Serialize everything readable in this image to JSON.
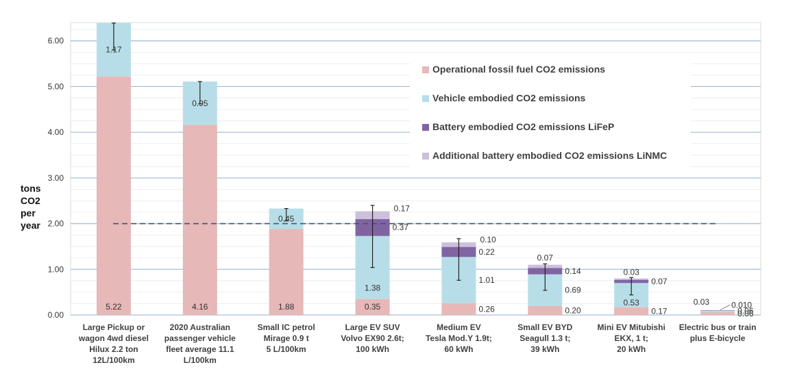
{
  "chart_data": {
    "type": "bar",
    "stacked": true,
    "ylabel": [
      "tons",
      "CO2",
      "per",
      "year"
    ],
    "ylim": [
      0,
      6.4
    ],
    "yticks": [
      "0.00",
      "1.00",
      "2.00",
      "3.00",
      "4.00",
      "5.00",
      "6.00"
    ],
    "ytick_values": [
      0,
      1,
      2,
      3,
      4,
      5,
      6
    ],
    "grid": true,
    "reference_line": 2.0,
    "legend_position": "top-right",
    "categories": [
      [
        "Large Pickup or",
        "wagon 4wd diesel",
        "Hilux 2.2 ton",
        "12L/100km"
      ],
      [
        "2020 Australian",
        "passenger vehicle",
        "fleet average      11.1",
        "L/100km"
      ],
      [
        "Small IC petrol",
        "Mirage 0.9 t",
        "5 L/100km"
      ],
      [
        "Large EV  SUV",
        "Volvo EX90 2.6t;",
        "100 kWh"
      ],
      [
        "Medium EV",
        "Tesla Mod.Y  1.9t;",
        "60 kWh"
      ],
      [
        "Small EV BYD",
        "Seagull 1.3 t;",
        "39 kWh"
      ],
      [
        "Mini EV Mitubishi",
        "EKX,  1 t;",
        "20 kWh"
      ],
      [
        "Electric bus or train",
        "plus E-bicycle"
      ]
    ],
    "series": [
      {
        "name": "Operational fossil fuel CO2 emissions",
        "color": "#e6b8b7",
        "values": [
          5.22,
          4.16,
          1.88,
          0.35,
          0.26,
          0.2,
          0.17,
          0.06
        ],
        "labels": [
          "5.22",
          "4.16",
          "1.88",
          "0.35",
          "0.26",
          "0.20",
          "0.17",
          "0.06"
        ]
      },
      {
        "name": "Vehicle embodied CO2 emissions",
        "color": "#b7dee8",
        "values": [
          1.17,
          0.95,
          0.45,
          1.38,
          1.01,
          0.69,
          0.53,
          0.03
        ],
        "labels": [
          "1.17",
          "0.95",
          "0.45",
          "1.38",
          "1.01",
          "0.69",
          "0.53",
          "0.03"
        ]
      },
      {
        "name": "Battery embodied CO2 emissions LiFeP",
        "color": "#8064a2",
        "values": [
          0,
          0,
          0,
          0.37,
          0.22,
          0.14,
          0.07,
          0.01
        ],
        "labels": [
          "",
          "",
          "",
          "0.37",
          "0.22",
          "0.14",
          "0.07",
          "0.010"
        ]
      },
      {
        "name": "Additional battery embodied CO2 emissions LiNMC",
        "color": "#ccc0da",
        "values": [
          0,
          0,
          0,
          0.17,
          0.1,
          0.07,
          0.03,
          0
        ],
        "labels": [
          "",
          "",
          "",
          "0.17",
          "0.10",
          "0.07",
          "0.03",
          ""
        ]
      }
    ],
    "error_bars": [
      {
        "low": 5.8,
        "high": 6.39
      },
      {
        "low": 4.62,
        "high": 5.11
      },
      {
        "low": 2.06,
        "high": 2.33
      },
      {
        "low": 1.04,
        "high": 2.4
      },
      {
        "low": 0.76,
        "high": 1.67
      },
      {
        "low": 0.54,
        "high": 1.12
      },
      {
        "low": 0.44,
        "high": 0.82
      },
      null
    ]
  }
}
